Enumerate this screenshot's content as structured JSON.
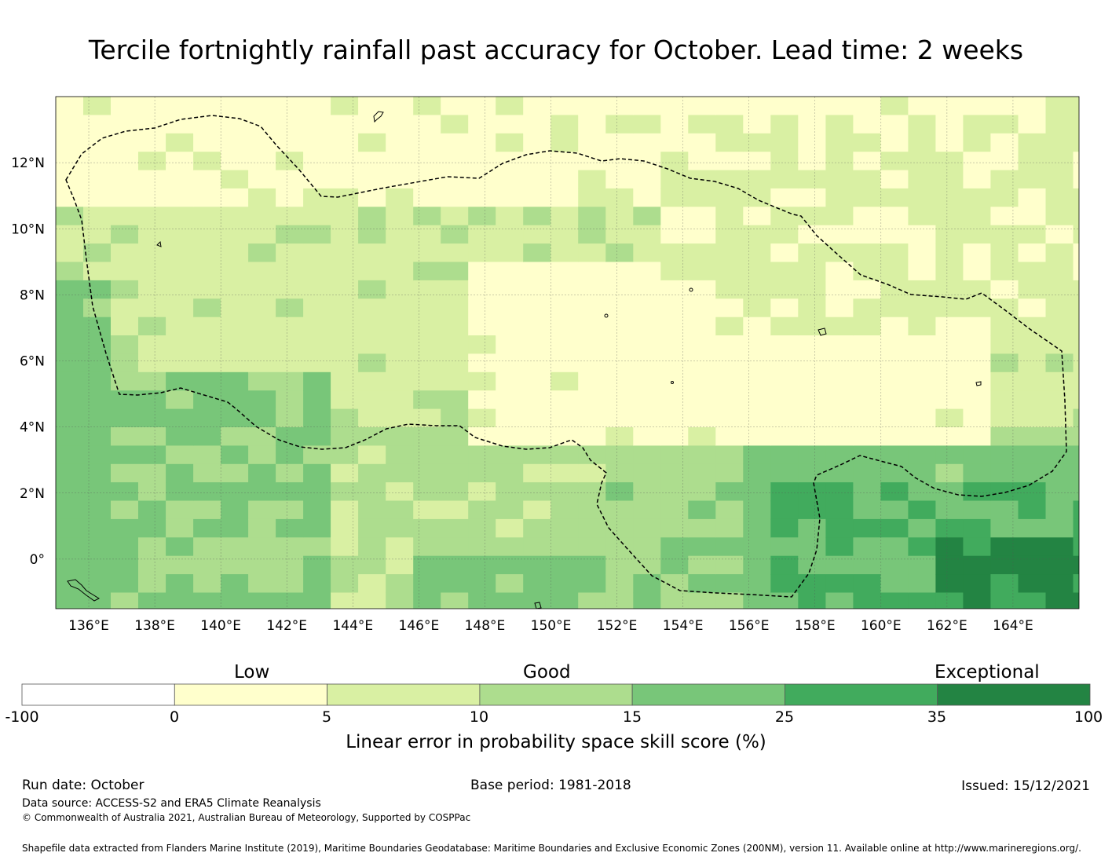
{
  "title": "Tercile fortnightly rainfall past accuracy for October. Lead time: 2 weeks",
  "map": {
    "lat_labels": [
      "12°N",
      "10°N",
      "8°N",
      "6°N",
      "4°N",
      "2°N",
      "0°"
    ],
    "lon_labels": [
      "136°E",
      "138°E",
      "140°E",
      "142°E",
      "144°E",
      "146°E",
      "148°E",
      "150°E",
      "152°E",
      "154°E",
      "156°E",
      "158°E",
      "160°E",
      "162°E",
      "164°E"
    ],
    "lon_range": [
      135,
      166
    ],
    "lat_range": [
      -1.5,
      14
    ],
    "boundary_note": "dashed line: Federated States of Micronesia EEZ"
  },
  "colorbar": {
    "category_labels": [
      "Low",
      "Good",
      "Exceptional"
    ],
    "ticks": [
      "-100",
      "0",
      "5",
      "10",
      "15",
      "25",
      "35",
      "100"
    ],
    "colors": [
      "#ffffff",
      "#ffffcc",
      "#d9f0a3",
      "#addd8e",
      "#78c679",
      "#41ab5d",
      "#238443"
    ],
    "title": "Linear error in probability space skill score (%)"
  },
  "footer": {
    "run_date": "Run date: October",
    "base_period": "Base period: 1981-2018",
    "issued": "Issued: 15/12/2021",
    "data_source": "Data source: ACCESS-S2 and ERA5 Climate Reanalysis",
    "copyright": "© Commonwealth of Australia 2021, Australian Bureau of Meteorology, Supported by COSPPac",
    "shapefile": "Shapefile data extracted from Flanders Marine Institute (2019), Maritime Boundaries Geodatabase: Maritime Boundaries and Exclusive Economic Zones (200NM), version 11. Available online at http://www.marineregions.org/."
  }
}
